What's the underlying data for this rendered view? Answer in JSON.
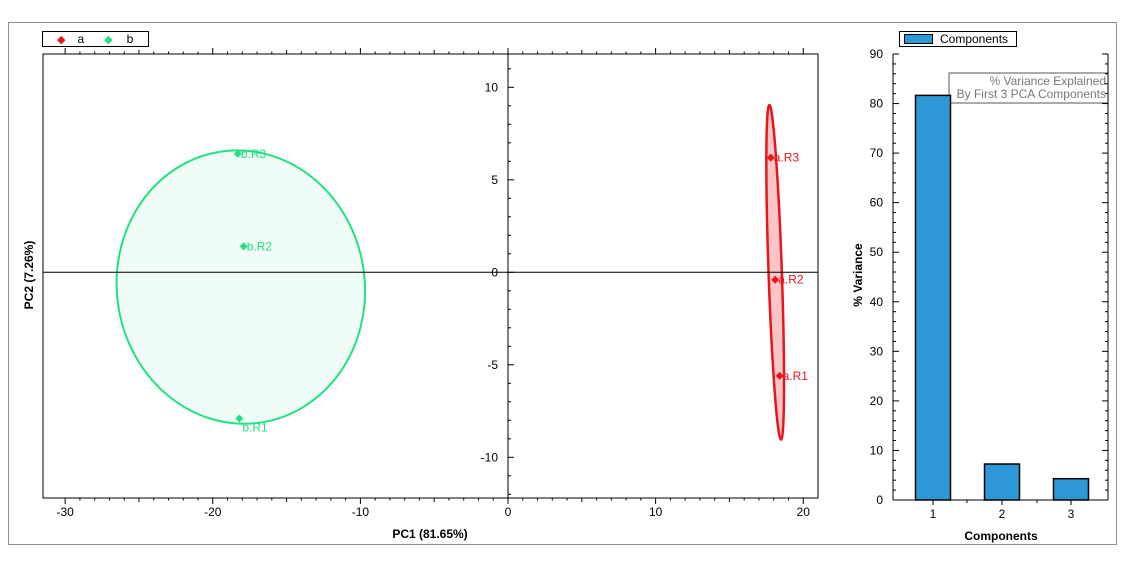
{
  "chart_data": [
    {
      "type": "scatter",
      "xlabel": "PC1 (81.65%)",
      "ylabel": "PC2 (7.26%)",
      "xlim": [
        -31.5,
        21
      ],
      "ylim": [
        -12.2,
        11.8
      ],
      "xticks": [
        -30,
        -20,
        -10,
        0,
        10,
        20
      ],
      "yticks": [
        -10,
        -5,
        0,
        5,
        10
      ],
      "legend": {
        "placement": "top-left",
        "entries": [
          "a",
          "b"
        ]
      },
      "series": [
        {
          "name": "a",
          "color": "#e8161c",
          "marker": "diamond",
          "points": [
            {
              "label": "a.R3",
              "x": 17.8,
              "y": 6.2
            },
            {
              "label": "a.R2",
              "x": 18.1,
              "y": -0.4
            },
            {
              "label": "a.R1",
              "x": 18.4,
              "y": -5.6
            }
          ],
          "ellipse": {
            "cx": 18.1,
            "cy": 0.0,
            "rx": 0.45,
            "ry": 9.05,
            "angle": -2
          }
        },
        {
          "name": "b",
          "color": "#22e084",
          "marker": "diamond",
          "points": [
            {
              "label": "b.R3",
              "x": -18.3,
              "y": 6.4
            },
            {
              "label": "b.R2",
              "x": -17.9,
              "y": 1.4
            },
            {
              "label": "b.R1",
              "x": -18.2,
              "y": -7.9
            }
          ],
          "ellipse": {
            "cx": -18.1,
            "cy": -0.8,
            "rx": 8.4,
            "ry": 7.4,
            "angle": -8
          }
        }
      ]
    },
    {
      "type": "bar",
      "categories": [
        "1",
        "2",
        "3"
      ],
      "values": [
        81.65,
        7.26,
        4.3
      ],
      "xlabel": "Components",
      "ylabel": "% Variance",
      "ylim": [
        0,
        90
      ],
      "yticks": [
        0,
        10,
        20,
        30,
        40,
        50,
        60,
        70,
        80,
        90
      ],
      "legend": {
        "placement": "top-left",
        "entries": [
          "Components"
        ]
      },
      "annotation": [
        "% Variance Explained",
        "By First 3 PCA Components"
      ],
      "bar_color": "#2e97d6"
    }
  ]
}
